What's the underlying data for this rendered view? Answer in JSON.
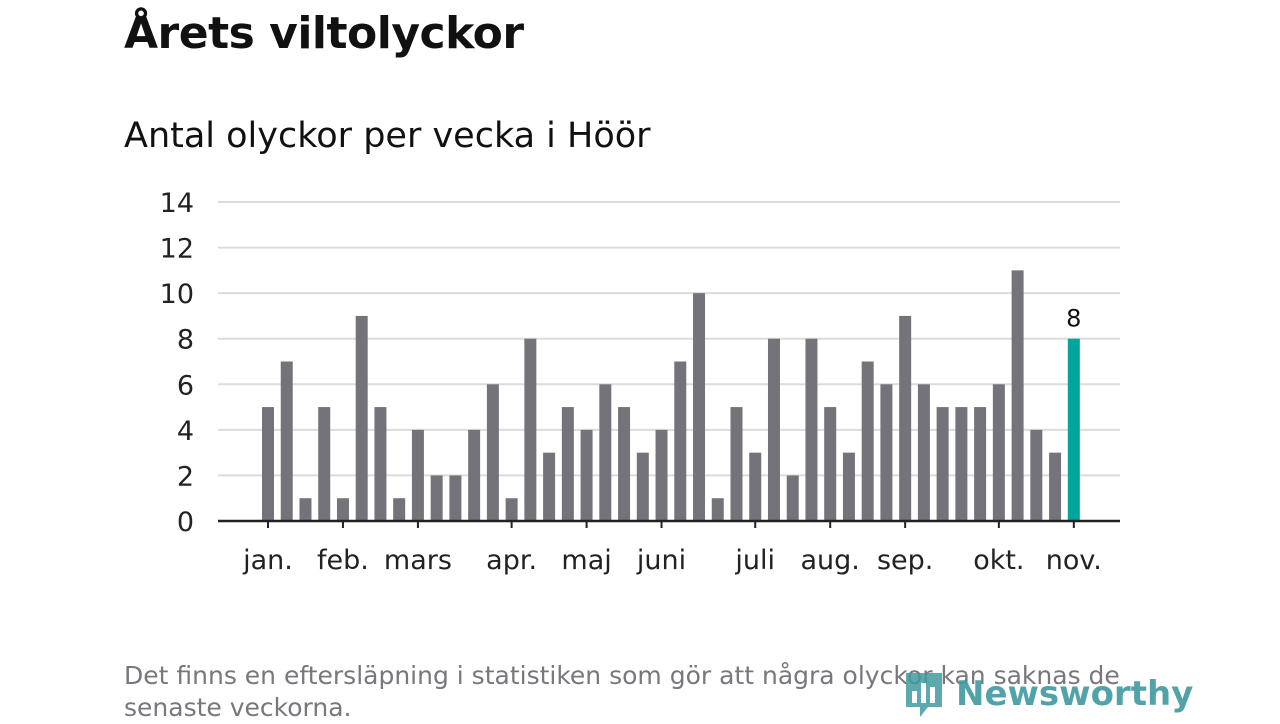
{
  "header": {
    "title": "Årets viltolyckor",
    "subtitle": "Antal olyckor per vecka i Höör"
  },
  "footer": {
    "note": "Det finns en eftersläpning i statistiken som gör att några olyckor kan saknas de senaste veckorna.",
    "brand": "Newsworthy",
    "brand_icon": "bar-chart-logo-icon"
  },
  "colors": {
    "bar": "#74737a",
    "highlight": "#00a59c",
    "grid": "#dcdcdc",
    "axis": "#222222"
  },
  "chart_data": {
    "type": "bar",
    "title": "Antal olyckor per vecka i Höör",
    "xlabel": "",
    "ylabel": "",
    "ylim": [
      0,
      14
    ],
    "yticks": [
      0,
      2,
      4,
      6,
      8,
      10,
      12,
      14
    ],
    "grid": true,
    "values": [
      5,
      7,
      1,
      5,
      1,
      9,
      5,
      1,
      4,
      2,
      2,
      4,
      6,
      1,
      8,
      3,
      5,
      4,
      6,
      5,
      3,
      4,
      7,
      10,
      1,
      5,
      3,
      8,
      2,
      8,
      5,
      3,
      7,
      6,
      9,
      6,
      5,
      5,
      5,
      6,
      11,
      4,
      3,
      8
    ],
    "highlight_index": 43,
    "data_labels": [
      {
        "index": 43,
        "text": "8"
      }
    ],
    "month_labels": [
      {
        "label": "jan.",
        "bar": 0
      },
      {
        "label": "feb.",
        "bar": 4
      },
      {
        "label": "mars",
        "bar": 8
      },
      {
        "label": "apr.",
        "bar": 13
      },
      {
        "label": "maj",
        "bar": 17
      },
      {
        "label": "juni",
        "bar": 21
      },
      {
        "label": "juli",
        "bar": 26
      },
      {
        "label": "aug.",
        "bar": 30
      },
      {
        "label": "sep.",
        "bar": 34
      },
      {
        "label": "okt.",
        "bar": 39
      },
      {
        "label": "nov.",
        "bar": 43
      }
    ]
  }
}
